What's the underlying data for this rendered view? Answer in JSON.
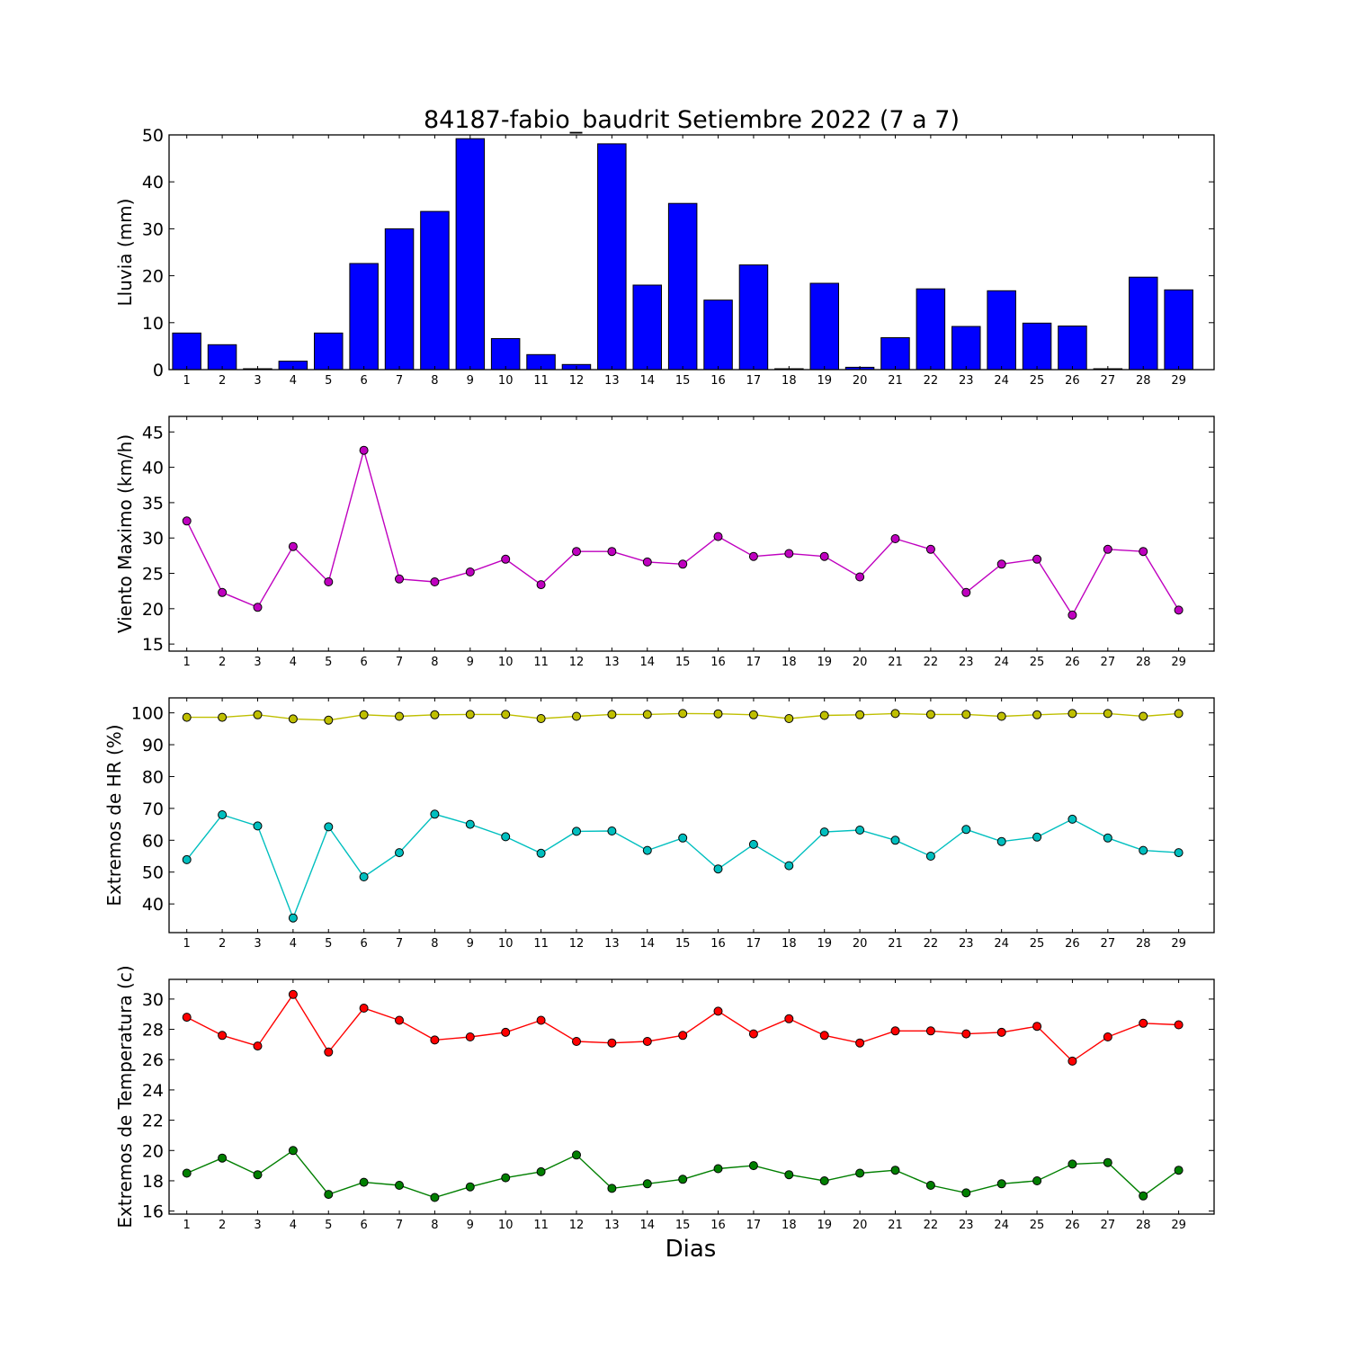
{
  "chart_data": [
    {
      "type": "bar",
      "title": "84187-fabio_baudrit Setiembre 2022  (7 a 7)",
      "ylabel": "Lluvia (mm)",
      "xlabel": "",
      "categories": [
        "1",
        "2",
        "3",
        "4",
        "5",
        "6",
        "7",
        "8",
        "9",
        "10",
        "11",
        "12",
        "13",
        "14",
        "15",
        "16",
        "17",
        "18",
        "19",
        "20",
        "21",
        "22",
        "23",
        "24",
        "25",
        "26",
        "27",
        "28",
        "29"
      ],
      "ylim": [
        0,
        50
      ],
      "yticks": [
        0,
        10,
        20,
        30,
        40,
        50
      ],
      "series": [
        {
          "color": "#0000ff",
          "values": [
            7.8,
            5.3,
            0.2,
            1.8,
            7.8,
            22.6,
            30.0,
            33.7,
            49.2,
            6.6,
            3.2,
            1.1,
            48.1,
            18.0,
            35.4,
            14.8,
            22.3,
            0.2,
            18.4,
            0.5,
            6.8,
            17.2,
            9.2,
            16.8,
            9.9,
            9.3,
            0.2,
            19.7,
            17.0
          ]
        }
      ]
    },
    {
      "type": "line",
      "title": "",
      "ylabel": "Viento Maximo (km/h)",
      "xlabel": "",
      "categories": [
        "1",
        "2",
        "3",
        "4",
        "5",
        "6",
        "7",
        "8",
        "9",
        "10",
        "11",
        "12",
        "13",
        "14",
        "15",
        "16",
        "17",
        "18",
        "19",
        "20",
        "21",
        "22",
        "23",
        "24",
        "25",
        "26",
        "27",
        "28",
        "29"
      ],
      "ylim": [
        14,
        47.2
      ],
      "yticks": [
        15,
        20,
        25,
        30,
        35,
        40,
        45
      ],
      "series": [
        {
          "color": "#bf00bf",
          "values": [
            32.4,
            22.3,
            20.2,
            28.8,
            23.8,
            42.4,
            24.2,
            23.8,
            25.2,
            27.0,
            23.4,
            28.1,
            28.1,
            26.6,
            26.3,
            30.2,
            27.4,
            27.8,
            27.4,
            24.5,
            29.9,
            28.4,
            22.3,
            26.3,
            27.0,
            19.1,
            28.4,
            28.1,
            19.8
          ]
        }
      ]
    },
    {
      "type": "line",
      "title": "",
      "ylabel": "Extremos de HR (%)",
      "xlabel": "",
      "categories": [
        "1",
        "2",
        "3",
        "4",
        "5",
        "6",
        "7",
        "8",
        "9",
        "10",
        "11",
        "12",
        "13",
        "14",
        "15",
        "16",
        "17",
        "18",
        "19",
        "20",
        "21",
        "22",
        "23",
        "24",
        "25",
        "26",
        "27",
        "28",
        "29"
      ],
      "ylim": [
        31,
        104.7
      ],
      "yticks": [
        40,
        50,
        60,
        70,
        80,
        90,
        100
      ],
      "series": [
        {
          "color": "#bfbf00",
          "values": [
            98.6,
            98.6,
            99.4,
            98.1,
            97.7,
            99.4,
            98.9,
            99.4,
            99.5,
            99.5,
            98.2,
            98.9,
            99.5,
            99.5,
            99.8,
            99.7,
            99.4,
            98.2,
            99.2,
            99.4,
            99.8,
            99.5,
            99.5,
            98.9,
            99.4,
            99.8,
            99.8,
            98.9,
            99.8
          ]
        },
        {
          "color": "#00bfbf",
          "values": [
            53.9,
            68.0,
            64.5,
            35.6,
            64.2,
            48.5,
            56.1,
            68.2,
            65.0,
            61.1,
            55.9,
            62.8,
            62.9,
            56.8,
            60.7,
            51.0,
            58.7,
            52.0,
            62.6,
            63.2,
            60.0,
            55.0,
            63.4,
            59.6,
            61.0,
            66.6,
            60.7,
            56.8,
            56.1
          ]
        }
      ]
    },
    {
      "type": "line",
      "title": "",
      "ylabel": "Extremos de Temperatura (c)",
      "xlabel": "Dias",
      "categories": [
        "1",
        "2",
        "3",
        "4",
        "5",
        "6",
        "7",
        "8",
        "9",
        "10",
        "11",
        "12",
        "13",
        "14",
        "15",
        "16",
        "17",
        "18",
        "19",
        "20",
        "21",
        "22",
        "23",
        "24",
        "25",
        "26",
        "27",
        "28",
        "29"
      ],
      "ylim": [
        15.8,
        31.3
      ],
      "yticks": [
        16,
        18,
        20,
        22,
        24,
        26,
        28,
        30
      ],
      "series": [
        {
          "color": "#ff0000",
          "values": [
            28.8,
            27.6,
            26.9,
            30.3,
            26.5,
            29.4,
            28.6,
            27.3,
            27.5,
            27.8,
            28.6,
            27.2,
            27.1,
            27.2,
            27.6,
            29.2,
            27.7,
            28.7,
            27.6,
            27.1,
            27.9,
            27.9,
            27.7,
            27.8,
            28.2,
            25.9,
            27.5,
            28.4,
            28.3
          ]
        },
        {
          "color": "#007f00",
          "values": [
            18.5,
            19.5,
            18.4,
            20.0,
            17.1,
            17.9,
            17.7,
            16.9,
            17.6,
            18.2,
            18.6,
            19.7,
            17.5,
            17.8,
            18.1,
            18.8,
            19.0,
            18.4,
            18.0,
            18.5,
            18.7,
            17.7,
            17.2,
            17.8,
            18.0,
            19.1,
            19.2,
            17.0,
            18.7
          ]
        }
      ]
    }
  ]
}
